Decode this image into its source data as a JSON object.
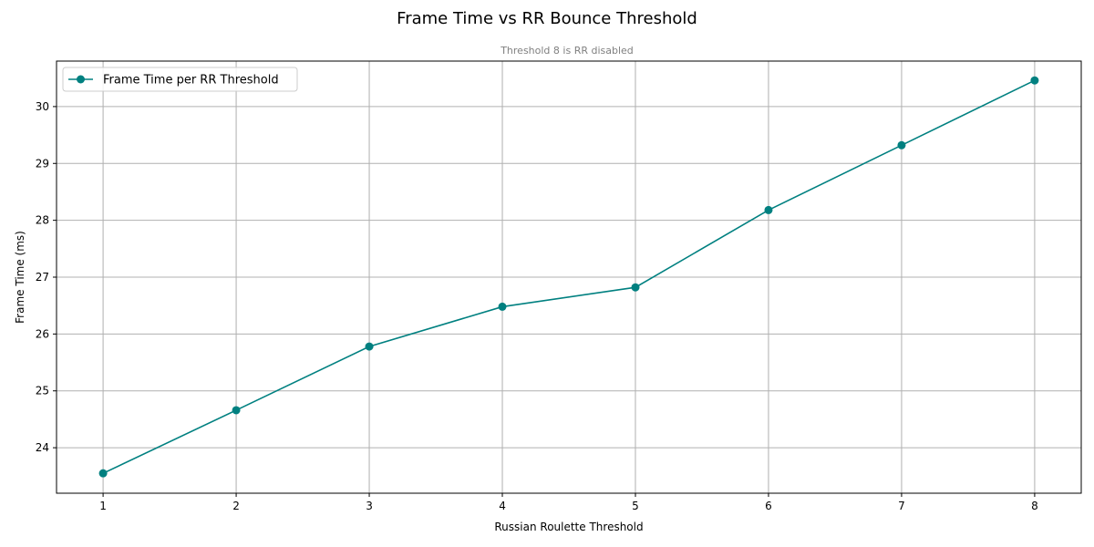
{
  "colors": {
    "series": "#008080",
    "grid": "#b0b0b0",
    "subtitle": "#808080"
  },
  "chart_data": {
    "type": "line",
    "title": "Frame Time vs RR Bounce Threshold",
    "subtitle": "Threshold 8 is RR disabled",
    "xlabel": "Russian Roulette Threshold",
    "ylabel": "Frame Time (ms)",
    "x": [
      1,
      2,
      3,
      4,
      5,
      6,
      7,
      8
    ],
    "xlim": [
      0.65,
      8.35
    ],
    "ylim": [
      23.2,
      30.8
    ],
    "xticks": [
      "1",
      "2",
      "3",
      "4",
      "5",
      "6",
      "7",
      "8"
    ],
    "yticks": [
      "24",
      "25",
      "26",
      "27",
      "28",
      "29",
      "30"
    ],
    "grid": true,
    "legend_position": "top-left",
    "series": [
      {
        "name": "Frame Time per RR Threshold",
        "values": [
          23.55,
          24.66,
          25.78,
          26.48,
          26.82,
          28.18,
          29.32,
          30.46
        ],
        "marker": "circle"
      }
    ]
  }
}
